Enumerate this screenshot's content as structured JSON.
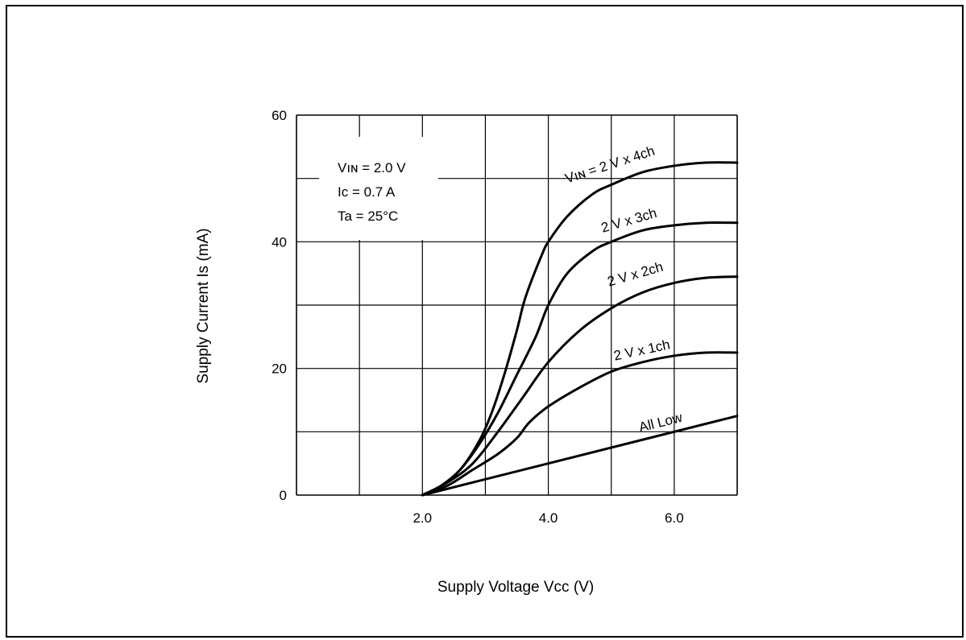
{
  "chart_data": {
    "type": "line",
    "title": "",
    "xlabel": "Supply Voltage Vcc (V)",
    "ylabel": "Supply Current Is (mA)",
    "xlim": [
      0,
      7
    ],
    "ylim": [
      0,
      60
    ],
    "x_ticks": [
      {
        "value": 2,
        "label": "2.0"
      },
      {
        "value": 4,
        "label": "4.0"
      },
      {
        "value": 6,
        "label": "6.0"
      }
    ],
    "y_ticks": [
      {
        "value": 0,
        "label": "0"
      },
      {
        "value": 20,
        "label": "20"
      },
      {
        "value": 40,
        "label": "40"
      },
      {
        "value": 60,
        "label": "60"
      }
    ],
    "grid": true,
    "conditions": [
      "Vıɴ = 2.0 V",
      "Ic = 0.7 A",
      "Ta = 25°C"
    ],
    "series": [
      {
        "name": "Vıɴ = 2 V x 4ch",
        "x": [
          2.0,
          2.3,
          2.6,
          2.9,
          3.1,
          3.3,
          3.5,
          3.6,
          3.7,
          3.9,
          4.0,
          4.3,
          4.7,
          5.0,
          5.5,
          6.0,
          6.5,
          7.0
        ],
        "y": [
          0,
          1.5,
          4,
          8.5,
          13,
          19,
          26,
          30,
          33,
          38,
          40,
          44,
          47.5,
          49,
          51,
          52,
          52.5,
          52.5
        ]
      },
      {
        "name": "2 V x 3ch",
        "x": [
          2.0,
          2.3,
          2.6,
          2.9,
          3.2,
          3.5,
          3.8,
          4.0,
          4.3,
          4.7,
          5.0,
          5.5,
          6.0,
          6.5,
          7.0
        ],
        "y": [
          0,
          1.5,
          4,
          8,
          13,
          19,
          25,
          30,
          35,
          38.5,
          40,
          41.8,
          42.6,
          43,
          43
        ]
      },
      {
        "name": "2 V x 2ch",
        "x": [
          2.0,
          2.4,
          2.8,
          3.2,
          3.6,
          4.0,
          4.5,
          5.0,
          5.5,
          6.0,
          6.5,
          7.0
        ],
        "y": [
          0,
          2,
          5,
          10,
          15.5,
          21,
          26,
          29.5,
          32,
          33.5,
          34.3,
          34.5
        ]
      },
      {
        "name": "2 V x 1ch",
        "x": [
          2.0,
          2.4,
          2.8,
          3.2,
          3.5,
          3.7,
          4.0,
          4.5,
          5.0,
          5.5,
          6.0,
          6.5,
          7.0
        ],
        "y": [
          0,
          1.5,
          4,
          6.5,
          9,
          11.5,
          14,
          17,
          19.5,
          21,
          22,
          22.5,
          22.5
        ]
      },
      {
        "name": "All Low",
        "x": [
          2.0,
          4.0,
          7.0
        ],
        "y": [
          0,
          5,
          12.5
        ]
      }
    ]
  }
}
